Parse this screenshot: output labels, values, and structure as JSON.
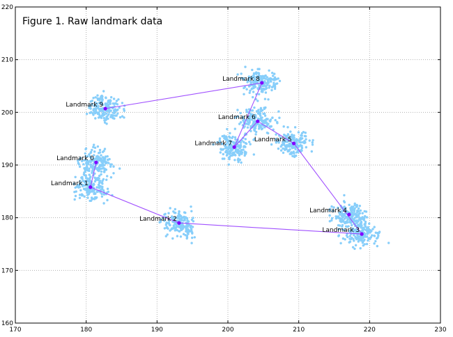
{
  "chart_data": {
    "type": "scatter",
    "title": "Figure 1. Raw landmark data",
    "xlabel": "",
    "ylabel": "",
    "xlim": [
      170,
      230
    ],
    "ylim": [
      160,
      220
    ],
    "xticks": [
      170,
      180,
      190,
      200,
      210,
      220,
      230
    ],
    "yticks": [
      160,
      170,
      180,
      190,
      200,
      210,
      220
    ],
    "grid": true,
    "colors": {
      "cloud": "#87cefa",
      "path": "#a050ff",
      "landmark": "#8000ff"
    },
    "landmarks": [
      {
        "label": "Landmark 0",
        "x": 181.4,
        "y": 190.5
      },
      {
        "label": "Landmark 1",
        "x": 180.6,
        "y": 185.8
      },
      {
        "label": "Landmark 2",
        "x": 193.1,
        "y": 179.0
      },
      {
        "label": "Landmark 3",
        "x": 218.9,
        "y": 176.9
      },
      {
        "label": "Landmark 4",
        "x": 217.1,
        "y": 180.6
      },
      {
        "label": "Landmark 5",
        "x": 209.3,
        "y": 194.1
      },
      {
        "label": "Landmark 6",
        "x": 204.2,
        "y": 198.3
      },
      {
        "label": "Landmark 7",
        "x": 200.9,
        "y": 193.4
      },
      {
        "label": "Landmark 8",
        "x": 204.8,
        "y": 205.6
      },
      {
        "label": "Landmark 9",
        "x": 182.7,
        "y": 200.7
      }
    ],
    "path_order": [
      9,
      8,
      7,
      6,
      5,
      3,
      2,
      1,
      0
    ]
  }
}
